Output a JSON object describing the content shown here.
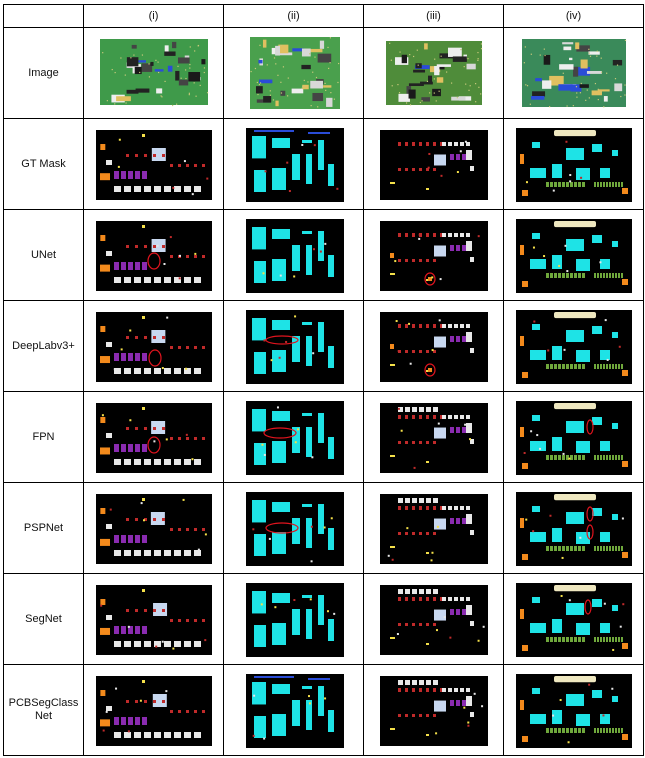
{
  "columns": [
    "(i)",
    "(ii)",
    "(iii)",
    "(iv)"
  ],
  "rows": [
    {
      "label": "Image"
    },
    {
      "label": "GT Mask"
    },
    {
      "label": "UNet"
    },
    {
      "label": "DeepLabv3+"
    },
    {
      "label": "FPN"
    },
    {
      "label": "PSPNet"
    },
    {
      "label": "SegNet"
    },
    {
      "label": "PCBSegClass\nNet"
    }
  ],
  "colors": {
    "background_mask": "#000000",
    "ic": "#1ee3e6",
    "connector": "#e8e8e8",
    "resistor": "#c02a2a",
    "capacitor": "#8a2bb0",
    "orange_part": "#f38a1c",
    "yellow_part": "#f4e04a",
    "green_part": "#6fa83c",
    "cream_part": "#efe8c0",
    "blue_part": "#2a4cd8",
    "highlight_circle": "#e0141e",
    "pcb_green": "#3a8c4a"
  }
}
